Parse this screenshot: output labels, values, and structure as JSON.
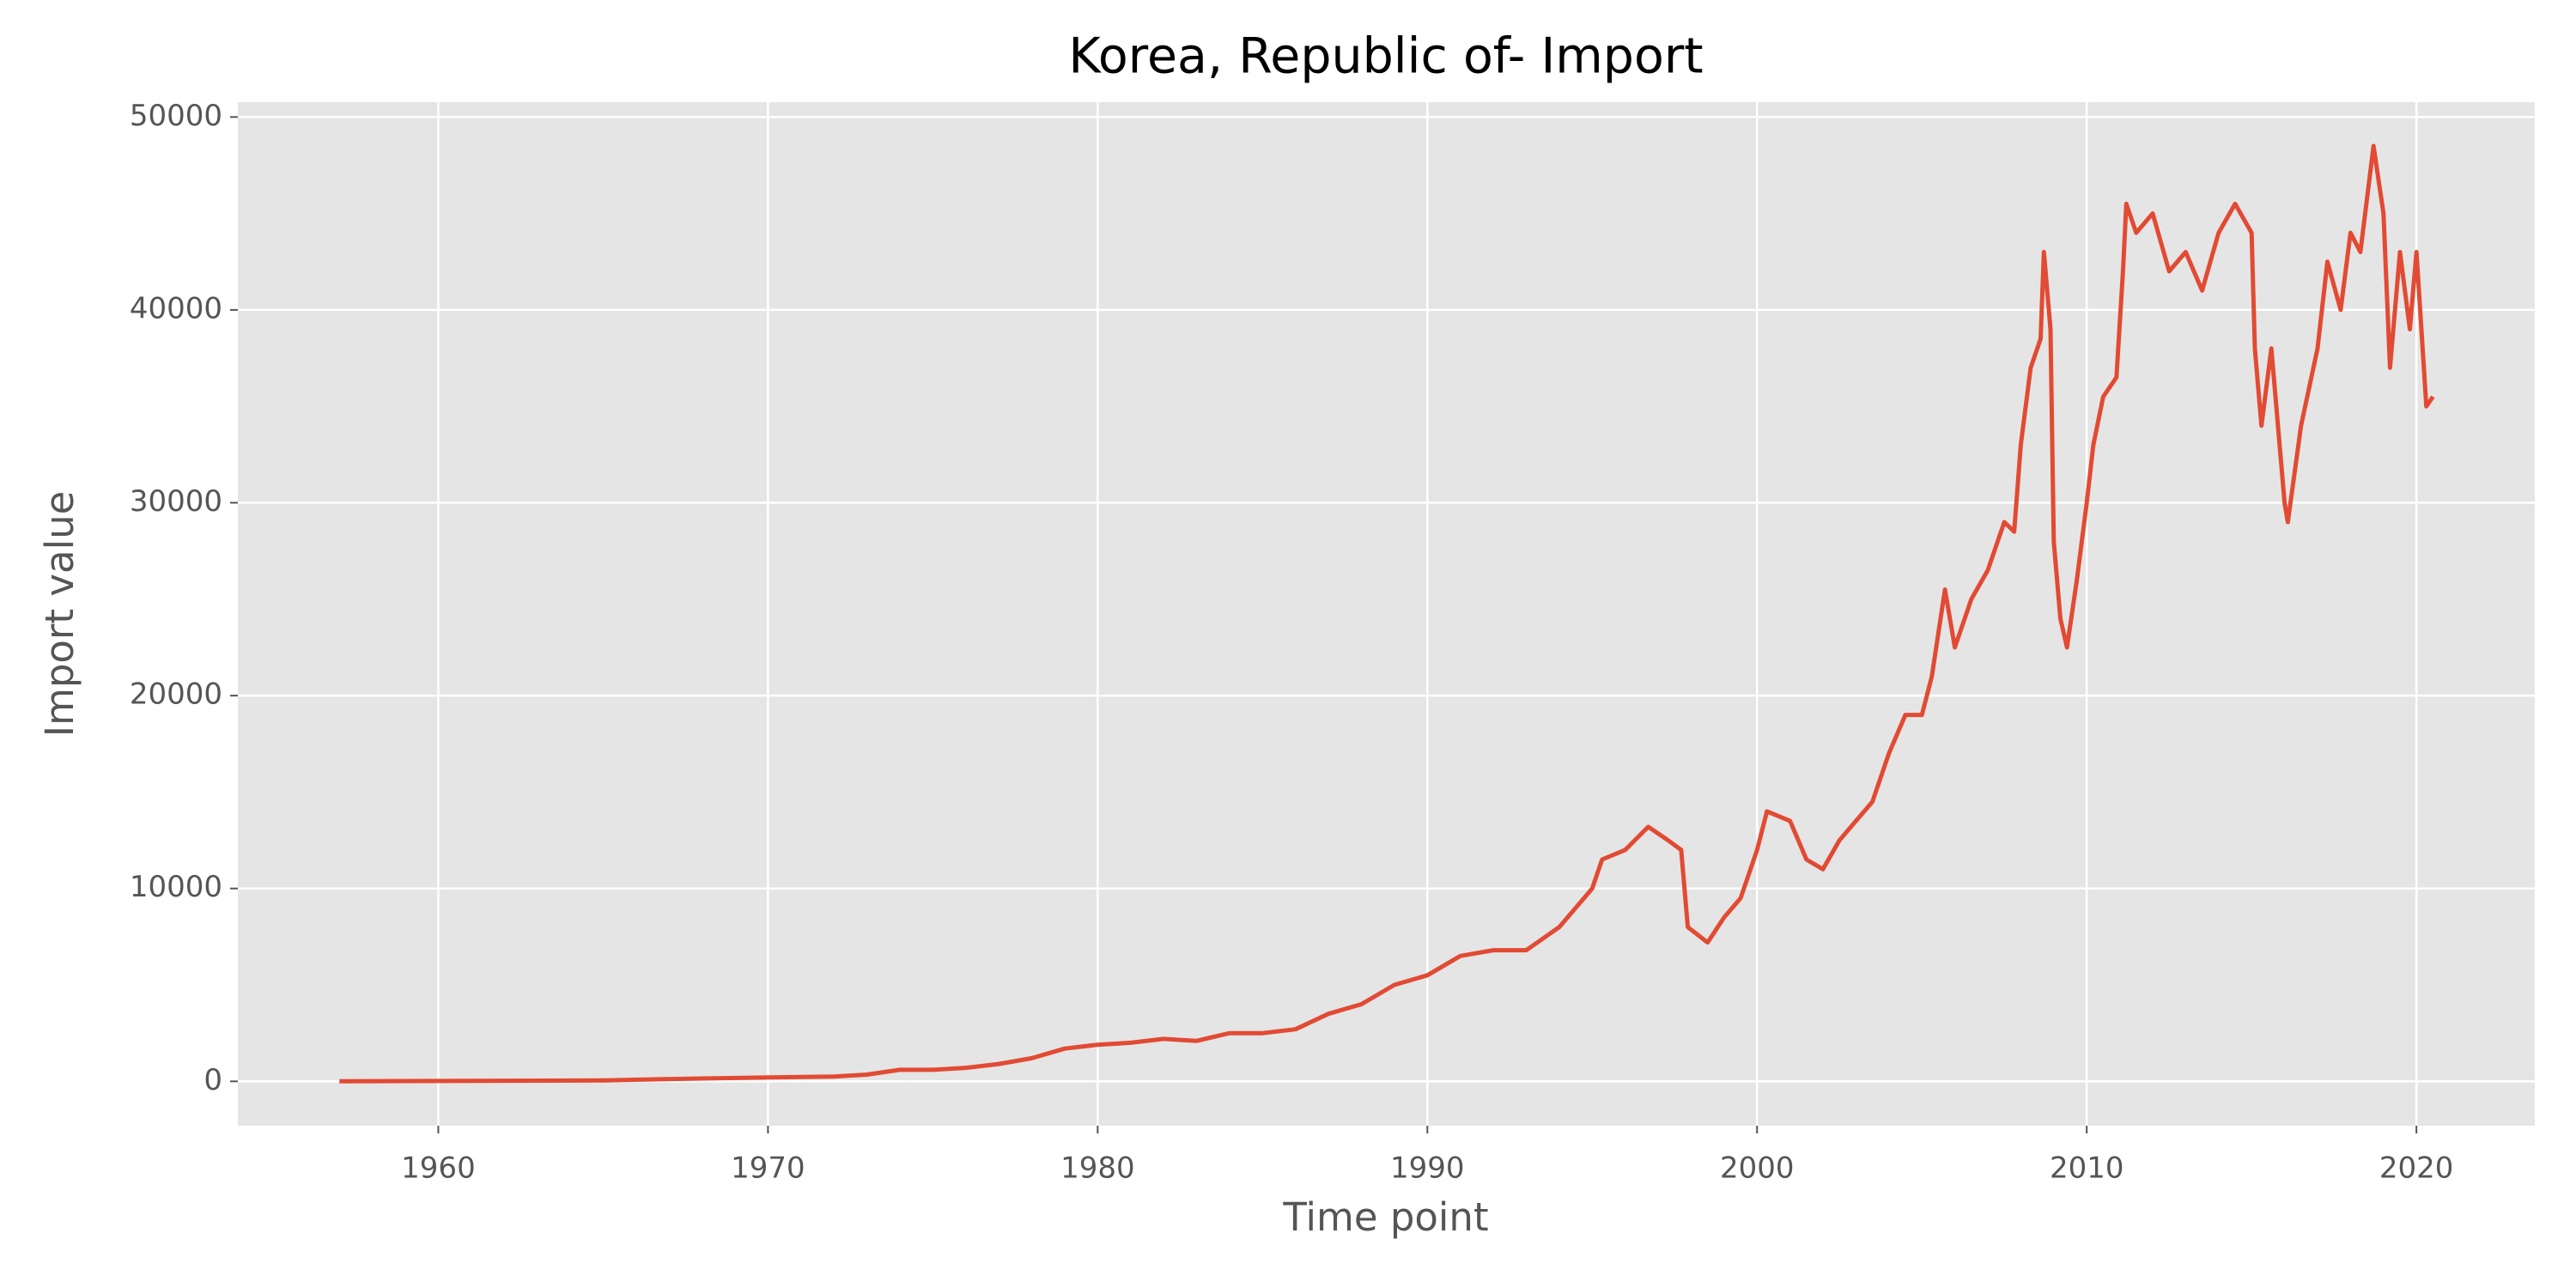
{
  "chart_data": {
    "type": "line",
    "title": "Korea, Republic of- Import",
    "x_label": "Time point",
    "y_label": "Import value",
    "color": "#e24a33",
    "grid": true,
    "xlim": [
      1953.92,
      2023.59
    ],
    "ylim": [
      -2300,
      50770
    ],
    "xticks": [
      1960,
      1970,
      1980,
      1990,
      2000,
      2010,
      2020
    ],
    "yticks": [
      0,
      10000,
      20000,
      30000,
      40000,
      50000
    ],
    "x": [
      1957.0,
      1960.0,
      1965.0,
      1968.0,
      1970.0,
      1972.0,
      1973.0,
      1974.0,
      1975.0,
      1976.0,
      1977.0,
      1978.0,
      1979.0,
      1980.0,
      1981.0,
      1982.0,
      1983.0,
      1984.0,
      1985.0,
      1986.0,
      1987.0,
      1988.0,
      1989.0,
      1990.0,
      1991.0,
      1992.0,
      1993.0,
      1994.0,
      1995.0,
      1995.3,
      1996.0,
      1996.7,
      1997.3,
      1997.7,
      1997.9,
      1998.5,
      1999.0,
      1999.5,
      2000.0,
      2000.3,
      2001.0,
      2001.5,
      2002.0,
      2002.5,
      2003.0,
      2003.5,
      2004.0,
      2004.5,
      2005.0,
      2005.3,
      2005.7,
      2006.0,
      2006.5,
      2007.0,
      2007.5,
      2007.8,
      2008.0,
      2008.3,
      2008.6,
      2008.7,
      2008.9,
      2009.0,
      2009.2,
      2009.4,
      2009.7,
      2010.0,
      2010.2,
      2010.5,
      2010.9,
      2011.1,
      2011.2,
      2011.5,
      2012.0,
      2012.5,
      2013.0,
      2013.5,
      2014.0,
      2014.5,
      2015.0,
      2015.1,
      2015.3,
      2015.6,
      2016.0,
      2016.1,
      2016.5,
      2017.0,
      2017.3,
      2017.7,
      2018.0,
      2018.3,
      2018.7,
      2019.0,
      2019.2,
      2019.5,
      2019.8,
      2020.0,
      2020.3,
      2020.5
    ],
    "values": [
      0,
      20,
      50,
      150,
      200,
      250,
      350,
      600,
      600,
      700,
      900,
      1200,
      1700,
      1900,
      2000,
      2200,
      2100,
      2500,
      2500,
      2700,
      3500,
      4000,
      5000,
      5500,
      6500,
      6800,
      6800,
      8000,
      10000,
      11500,
      12000,
      13200,
      12500,
      12000,
      8000,
      7200,
      8500,
      9500,
      12000,
      14000,
      13500,
      11500,
      11000,
      12500,
      13500,
      14500,
      17000,
      19000,
      19000,
      21000,
      25500,
      22500,
      25000,
      26500,
      29000,
      28500,
      33000,
      37000,
      38500,
      43000,
      39000,
      28000,
      24000,
      22500,
      26000,
      30000,
      33000,
      35500,
      36500,
      42000,
      45500,
      44000,
      45000,
      42000,
      43000,
      41000,
      44000,
      45500,
      44000,
      38000,
      34000,
      38000,
      30000,
      29000,
      34000,
      38000,
      42500,
      40000,
      44000,
      43000,
      48500,
      45000,
      37000,
      43000,
      39000,
      43000,
      35000,
      35500
    ]
  }
}
